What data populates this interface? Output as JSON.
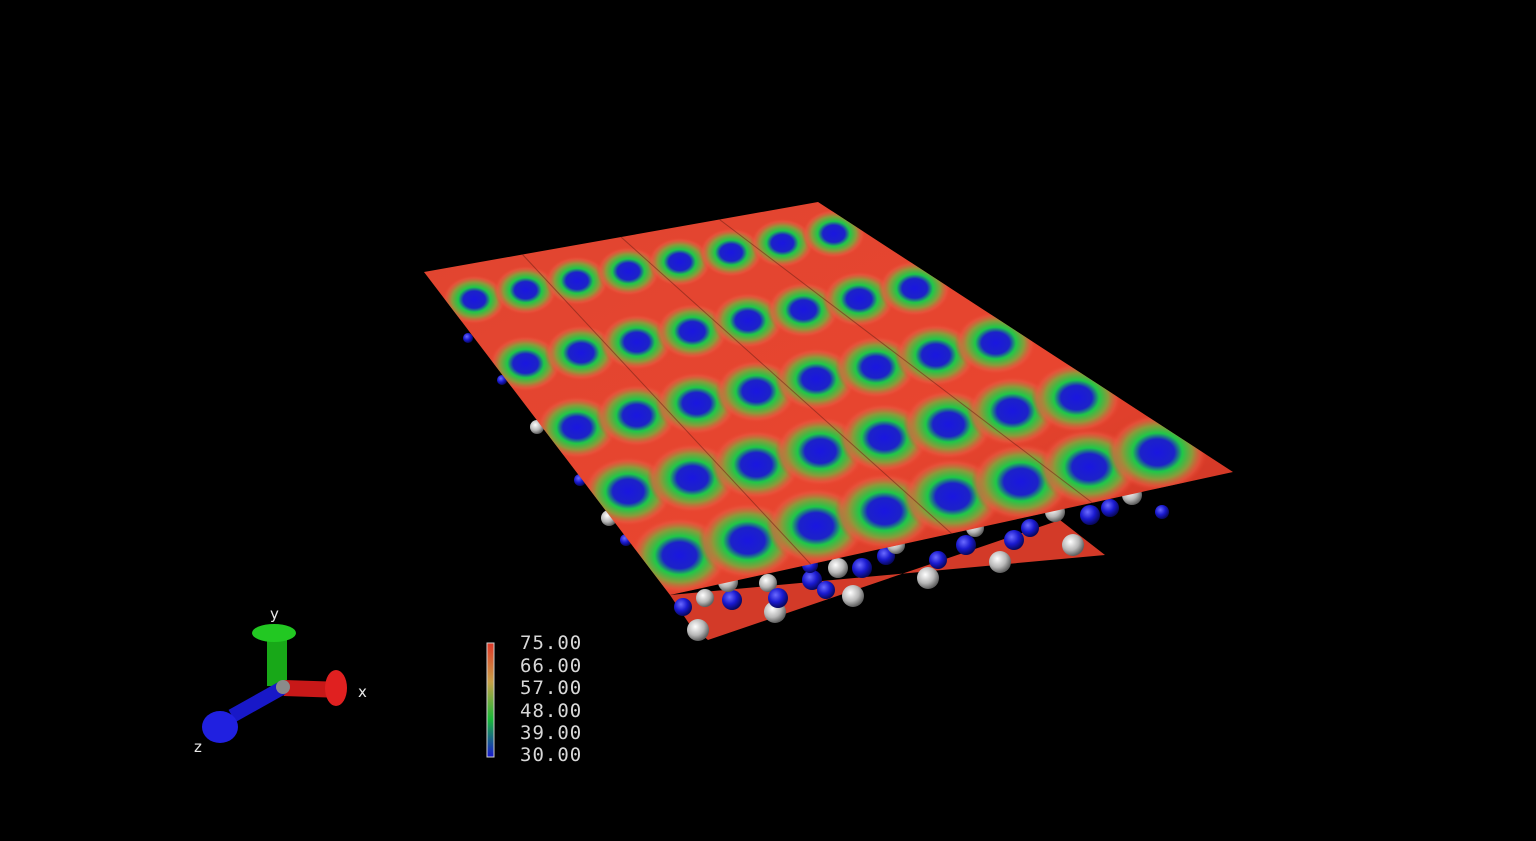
{
  "scene": {
    "background": "#000000",
    "surface_base_color": "#e8402c",
    "well_colors": [
      "#1a16d8",
      "#20c040",
      "#e8402c"
    ],
    "atom_colors": {
      "light": "#d8d8d8",
      "dark": "#1a1ad0"
    },
    "grid": {
      "rows": 5,
      "cols": 8
    }
  },
  "axes": {
    "x_label": "x",
    "y_label": "y",
    "z_label": "z",
    "colors": {
      "x": "#d01818",
      "y": "#18a818",
      "z": "#1818c8"
    }
  },
  "colorbar": {
    "min": 30.0,
    "max": 75.0,
    "colors": [
      "#1818d0",
      "#18b838",
      "#c8a048",
      "#e03828"
    ],
    "ticks": [
      "75.00",
      "66.00",
      "57.00",
      "48.00",
      "39.00",
      "30.00"
    ]
  }
}
